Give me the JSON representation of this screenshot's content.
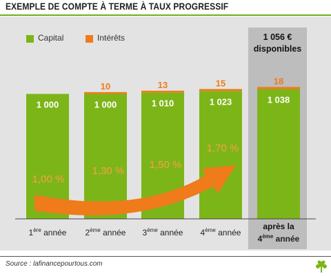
{
  "title": "EXEMPLE DE COMPTE À TERME À TAUX PROGRESSIF",
  "legend": {
    "capital": "Capital",
    "interets": "Intérêts"
  },
  "available": {
    "line1": "1 056 €",
    "line2": "disponibles"
  },
  "source": "Source : lafinancepourtous.com",
  "colors": {
    "capital": "#7cb518",
    "interets": "#ef7b1a",
    "arrow": "#ef7b1a",
    "rate_text": "#f6a04b"
  },
  "chart_data": {
    "type": "bar",
    "stacked": true,
    "categories": [
      {
        "num": "1",
        "sup": "ère",
        "rest": " année"
      },
      {
        "num": "2",
        "sup": "ème",
        "rest": " année"
      },
      {
        "num": "3",
        "sup": "ème",
        "rest": " année"
      },
      {
        "num": "4",
        "sup": "ème",
        "rest": " année"
      },
      {
        "line1": "après la",
        "num": "4",
        "sup": "ème",
        "rest": " année"
      }
    ],
    "series": [
      {
        "name": "Capital",
        "values": [
          1000,
          1000,
          1010,
          1023,
          1038
        ],
        "labels": [
          "1 000",
          "1 000",
          "1 010",
          "1 023",
          "1 038"
        ]
      },
      {
        "name": "Intérêts",
        "values": [
          0,
          10,
          13,
          15,
          18
        ],
        "labels": [
          "",
          "10",
          "13",
          "15",
          "18"
        ]
      }
    ],
    "rates": [
      "1,00 %",
      "1,30 %",
      "1,50 %",
      "1,70 %"
    ]
  }
}
